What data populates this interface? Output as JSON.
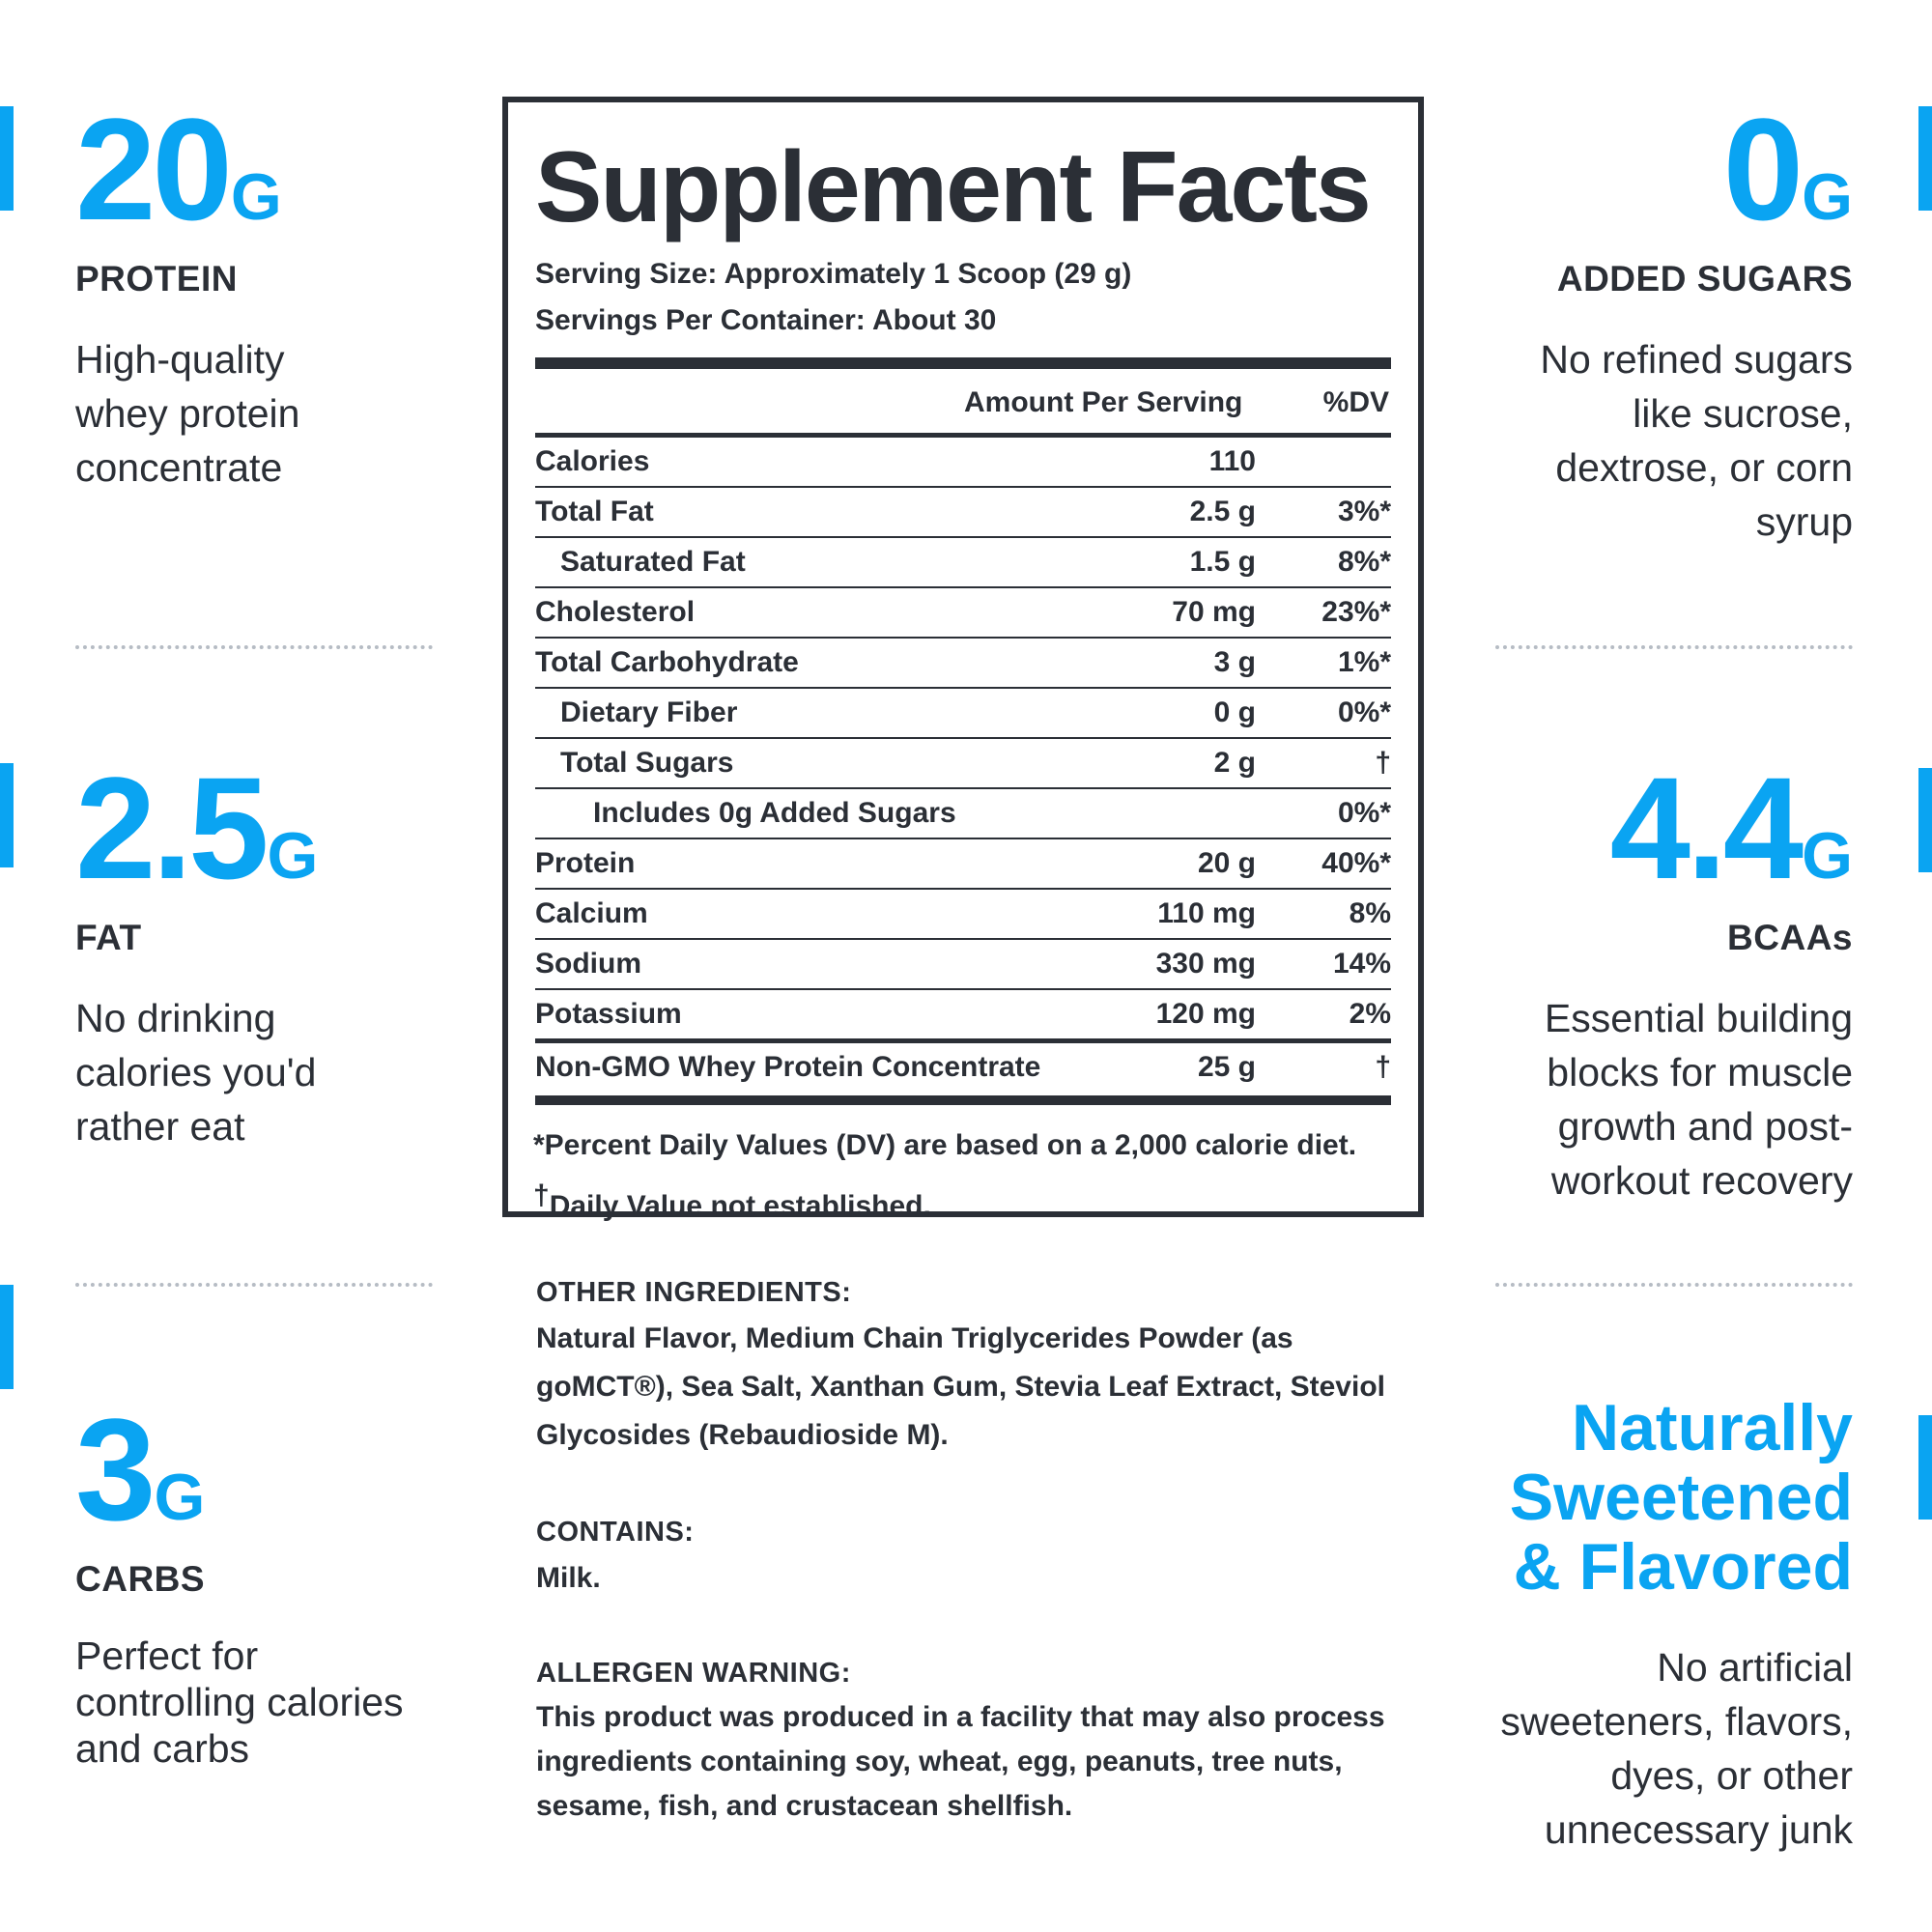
{
  "colors": {
    "accent": "#0aa4f2",
    "text": "#2b2f36"
  },
  "left_stats": [
    {
      "value": "20",
      "unit": "G",
      "label": "PROTEIN",
      "desc": [
        "High-quality",
        "whey protein",
        "concentrate"
      ]
    },
    {
      "value": "2.5",
      "unit": "G",
      "label": "FAT",
      "desc": [
        "No drinking",
        "calories you'd",
        "rather eat"
      ]
    },
    {
      "value": "3",
      "unit": "G",
      "label": "CARBS",
      "desc": [
        "Perfect for",
        "controlling calories",
        "and carbs"
      ]
    }
  ],
  "right_stats": [
    {
      "value": "0",
      "unit": "G",
      "label": "ADDED SUGARS",
      "desc": [
        "No refined sugars",
        "like sucrose,",
        "dextrose, or corn",
        "syrup"
      ]
    },
    {
      "value": "4.4",
      "unit": "G",
      "label": "BCAAs",
      "desc": [
        "Essential building",
        "blocks for muscle",
        "growth and post-",
        "workout recovery"
      ]
    }
  ],
  "headline_block": {
    "lines": [
      "Naturally",
      "Sweetened",
      "& Flavored"
    ],
    "desc": [
      "No artificial",
      "sweeteners, flavors,",
      "dyes, or other",
      "unnecessary junk"
    ]
  },
  "facts": {
    "title": "Supplement Facts",
    "serving_size": "Serving Size: Approximately 1 Scoop (29 g)",
    "servings_per_container": "Servings Per Container: About 30",
    "header_amount": "Amount Per Serving",
    "header_dv": "%DV",
    "rows": [
      {
        "name": "Calories",
        "amount": "110",
        "dv": ""
      },
      {
        "name": "Total Fat",
        "amount": "2.5 g",
        "dv": "3%*"
      },
      {
        "name": "Saturated Fat",
        "amount": "1.5 g",
        "dv": "8%*"
      },
      {
        "name": "Cholesterol",
        "amount": "70 mg",
        "dv": "23%*"
      },
      {
        "name": "Total Carbohydrate",
        "amount": "3 g",
        "dv": "1%*"
      },
      {
        "name": "Dietary Fiber",
        "amount": "0 g",
        "dv": "0%*"
      },
      {
        "name": "Total Sugars",
        "amount": "2 g",
        "dv": "†"
      },
      {
        "name": "Includes 0g Added Sugars",
        "amount": "",
        "dv": "0%*"
      },
      {
        "name": "Protein",
        "amount": "20 g",
        "dv": "40%*"
      },
      {
        "name": "Calcium",
        "amount": "110 mg",
        "dv": "8%"
      },
      {
        "name": "Sodium",
        "amount": "330 mg",
        "dv": "14%"
      },
      {
        "name": "Potassium",
        "amount": "120 mg",
        "dv": "2%"
      },
      {
        "name": "Non-GMO Whey Protein Concentrate",
        "amount": "25 g",
        "dv": "†"
      }
    ],
    "footnote_dv": "*Percent Daily Values (DV) are based on a 2,000 calorie diet.",
    "footnote_dagger_mark": "†",
    "footnote_dagger": "Daily Value not established."
  },
  "ingredients": {
    "other_heading": "OTHER INGREDIENTS:",
    "other_text": "Natural Flavor, Medium Chain Triglycerides Powder (as goMCT®), Sea Salt, Xanthan Gum, Stevia Leaf Extract, Steviol Glycosides (Rebaudioside M).",
    "contains_heading": "CONTAINS:",
    "contains_text": "Milk.",
    "allergen_heading": "ALLERGEN WARNING:",
    "allergen_text": "This product was produced in a facility that may also process ingredients containing soy, wheat, egg, peanuts, tree nuts, sesame, fish, and crustacean shellfish."
  }
}
